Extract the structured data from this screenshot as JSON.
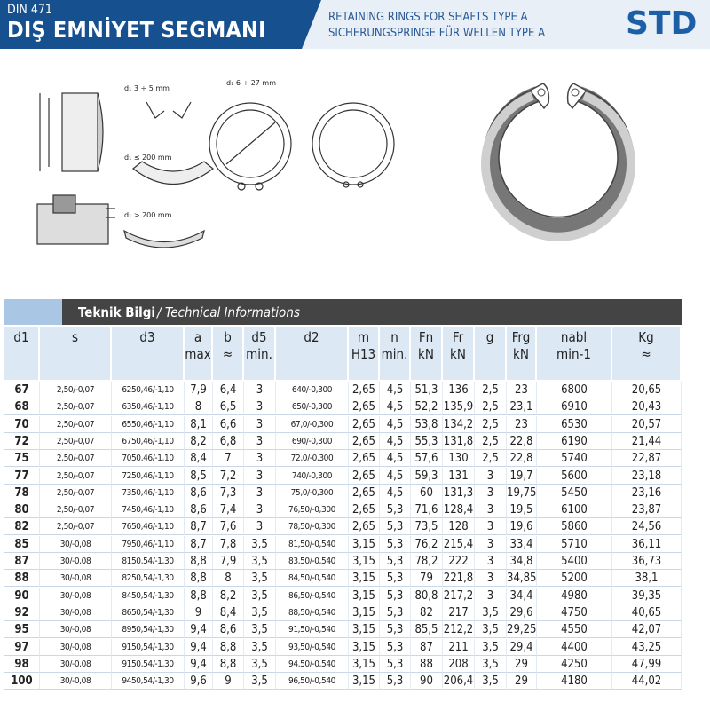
{
  "header": {
    "code": "DIN 471",
    "title": "DIŞ EMNİYET SEGMANI",
    "subtitle_en": "RETAINING RINGS FOR SHAFTS TYPE A",
    "subtitle_de": "SICHERUNGSPRINGE FÜR WELLEN TYPE A",
    "logo": "STD"
  },
  "figures": {
    "labels": [
      "d₁ 3 ÷ 5 mm",
      "d₁ ≤ 200 mm",
      "d₁ > 200 mm",
      "d₁ 6 ÷ 27 mm"
    ]
  },
  "section": {
    "title": "Teknik Bilgi",
    "subtitle": "/ Technical Informations"
  },
  "table": {
    "columns": [
      [
        "d1"
      ],
      [
        "s"
      ],
      [
        "d3"
      ],
      [
        "a",
        "max"
      ],
      [
        "b",
        "≈"
      ],
      [
        "d5",
        "min."
      ],
      [
        "d2"
      ],
      [
        "m",
        "H13"
      ],
      [
        "n",
        "min."
      ],
      [
        "Fn",
        "kN"
      ],
      [
        "Fr",
        "kN"
      ],
      [
        "g"
      ],
      [
        "Frg",
        "kN"
      ],
      [
        "nabl",
        "min-1"
      ],
      [
        "Kg",
        "≈"
      ]
    ],
    "rows": [
      [
        "67",
        "2,50/-0,07",
        "6250,46/-1,10",
        "7,9",
        "6,4",
        "3",
        "640/-0,300",
        "2,65",
        "4,5",
        "51,3",
        "136",
        "2,5",
        "23",
        "6800",
        "20,65"
      ],
      [
        "68",
        "2,50/-0,07",
        "6350,46/-1,10",
        "8",
        "6,5",
        "3",
        "650/-0,300",
        "2,65",
        "4,5",
        "52,2",
        "135,9",
        "2,5",
        "23,1",
        "6910",
        "20,43"
      ],
      [
        "70",
        "2,50/-0,07",
        "6550,46/-1,10",
        "8,1",
        "6,6",
        "3",
        "67,0/-0,300",
        "2,65",
        "4,5",
        "53,8",
        "134,2",
        "2,5",
        "23",
        "6530",
        "20,57"
      ],
      [
        "72",
        "2,50/-0,07",
        "6750,46/-1,10",
        "8,2",
        "6,8",
        "3",
        "690/-0,300",
        "2,65",
        "4,5",
        "55,3",
        "131,8",
        "2,5",
        "22,8",
        "6190",
        "21,44"
      ],
      [
        "75",
        "2,50/-0,07",
        "7050,46/-1,10",
        "8,4",
        "7",
        "3",
        "72,0/-0,300",
        "2,65",
        "4,5",
        "57,6",
        "130",
        "2,5",
        "22,8",
        "5740",
        "22,87"
      ],
      [
        "77",
        "2,50/-0,07",
        "7250,46/-1,10",
        "8,5",
        "7,2",
        "3",
        "740/-0,300",
        "2,65",
        "4,5",
        "59,3",
        "131",
        "3",
        "19,7",
        "5600",
        "23,18"
      ],
      [
        "78",
        "2,50/-0,07",
        "7350,46/-1,10",
        "8,6",
        "7,3",
        "3",
        "75,0/-0,300",
        "2,65",
        "4,5",
        "60",
        "131,3",
        "3",
        "19,75",
        "5450",
        "23,16"
      ],
      [
        "80",
        "2,50/-0,07",
        "7450,46/-1,10",
        "8,6",
        "7,4",
        "3",
        "76,50/-0,300",
        "2,65",
        "5,3",
        "71,6",
        "128,4",
        "3",
        "19,5",
        "6100",
        "23,87"
      ],
      [
        "82",
        "2,50/-0,07",
        "7650,46/-1,10",
        "8,7",
        "7,6",
        "3",
        "78,50/-0,300",
        "2,65",
        "5,3",
        "73,5",
        "128",
        "3",
        "19,6",
        "5860",
        "24,56"
      ],
      [
        "85",
        "30/-0,08",
        "7950,46/-1,10",
        "8,7",
        "7,8",
        "3,5",
        "81,50/-0,540",
        "3,15",
        "5,3",
        "76,2",
        "215,4",
        "3",
        "33,4",
        "5710",
        "36,11"
      ],
      [
        "87",
        "30/-0,08",
        "8150,54/-1,30",
        "8,8",
        "7,9",
        "3,5",
        "83,50/-0,540",
        "3,15",
        "5,3",
        "78,2",
        "222",
        "3",
        "34,8",
        "5400",
        "36,73"
      ],
      [
        "88",
        "30/-0,08",
        "8250,54/-1,30",
        "8,8",
        "8",
        "3,5",
        "84,50/-0,540",
        "3,15",
        "5,3",
        "79",
        "221,8",
        "3",
        "34,85",
        "5200",
        "38,1"
      ],
      [
        "90",
        "30/-0,08",
        "8450,54/-1,30",
        "8,8",
        "8,2",
        "3,5",
        "86,50/-0,540",
        "3,15",
        "5,3",
        "80,8",
        "217,2",
        "3",
        "34,4",
        "4980",
        "39,35"
      ],
      [
        "92",
        "30/-0,08",
        "8650,54/-1,30",
        "9",
        "8,4",
        "3,5",
        "88,50/-0,540",
        "3,15",
        "5,3",
        "82",
        "217",
        "3,5",
        "29,6",
        "4750",
        "40,65"
      ],
      [
        "95",
        "30/-0,08",
        "8950,54/-1,30",
        "9,4",
        "8,6",
        "3,5",
        "91,50/-0,540",
        "3,15",
        "5,3",
        "85,5",
        "212,2",
        "3,5",
        "29,25",
        "4550",
        "42,07"
      ],
      [
        "97",
        "30/-0,08",
        "9150,54/-1,30",
        "9,4",
        "8,8",
        "3,5",
        "93,50/-0,540",
        "3,15",
        "5,3",
        "87",
        "211",
        "3,5",
        "29,4",
        "4400",
        "43,25"
      ],
      [
        "98",
        "30/-0,08",
        "9150,54/-1,30",
        "9,4",
        "8,8",
        "3,5",
        "94,50/-0,540",
        "3,15",
        "5,3",
        "88",
        "208",
        "3,5",
        "29",
        "4250",
        "47,99"
      ],
      [
        "100",
        "30/-0,08",
        "9450,54/-1,30",
        "9,6",
        "9",
        "3,5",
        "96,50/-0,540",
        "3,15",
        "5,3",
        "90",
        "206,4",
        "3,5",
        "29",
        "4180",
        "44,02"
      ]
    ]
  }
}
